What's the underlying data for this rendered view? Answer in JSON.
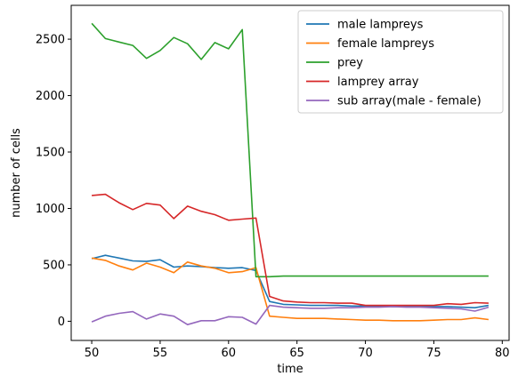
{
  "chart_data": {
    "type": "line",
    "title": "",
    "xlabel": "time",
    "ylabel": "number of cells",
    "xlim": [
      48.5,
      80.5
    ],
    "ylim": [
      -170,
      2800
    ],
    "xticks": [
      50,
      55,
      60,
      65,
      70,
      75,
      80
    ],
    "yticks": [
      0,
      500,
      1000,
      1500,
      2000,
      2500
    ],
    "grid": false,
    "legend_position": "top-right",
    "x": [
      50,
      51,
      52,
      53,
      54,
      55,
      56,
      57,
      58,
      59,
      60,
      61,
      62,
      63,
      64,
      65,
      66,
      67,
      68,
      69,
      70,
      71,
      72,
      73,
      74,
      75,
      76,
      77,
      78,
      79
    ],
    "series": [
      {
        "name": "male lampreys",
        "color": "#1f77b4",
        "values": [
          555,
          585,
          560,
          535,
          530,
          545,
          480,
          490,
          485,
          475,
          470,
          475,
          450,
          175,
          150,
          145,
          140,
          140,
          140,
          135,
          135,
          135,
          130,
          130,
          130,
          130,
          130,
          125,
          120,
          140
        ]
      },
      {
        "name": "female lampreys",
        "color": "#ff7f0e",
        "values": [
          560,
          540,
          490,
          455,
          515,
          480,
          430,
          525,
          490,
          470,
          430,
          440,
          475,
          45,
          35,
          25,
          25,
          25,
          20,
          15,
          10,
          10,
          5,
          5,
          5,
          10,
          15,
          15,
          30,
          15
        ]
      },
      {
        "name": "prey",
        "color": "#2ca02c",
        "values": [
          2640,
          2505,
          2475,
          2445,
          2330,
          2400,
          2515,
          2460,
          2320,
          2470,
          2415,
          2585,
          395,
          395,
          400,
          400,
          400,
          400,
          400,
          400,
          400,
          400,
          400,
          400,
          400,
          400,
          400,
          400,
          400,
          400
        ]
      },
      {
        "name": "lamprey array",
        "color": "#d62728",
        "values": [
          1115,
          1125,
          1050,
          990,
          1045,
          1030,
          910,
          1020,
          975,
          945,
          895,
          905,
          915,
          220,
          180,
          170,
          165,
          165,
          160,
          160,
          140,
          140,
          140,
          140,
          140,
          140,
          155,
          150,
          165,
          160
        ]
      },
      {
        "name": "sub array(male - female)",
        "color": "#9467bd",
        "values": [
          -5,
          45,
          70,
          85,
          20,
          65,
          45,
          -30,
          5,
          5,
          40,
          35,
          -25,
          140,
          125,
          120,
          115,
          115,
          120,
          120,
          125,
          125,
          130,
          125,
          125,
          120,
          115,
          110,
          90,
          125
        ]
      }
    ]
  }
}
